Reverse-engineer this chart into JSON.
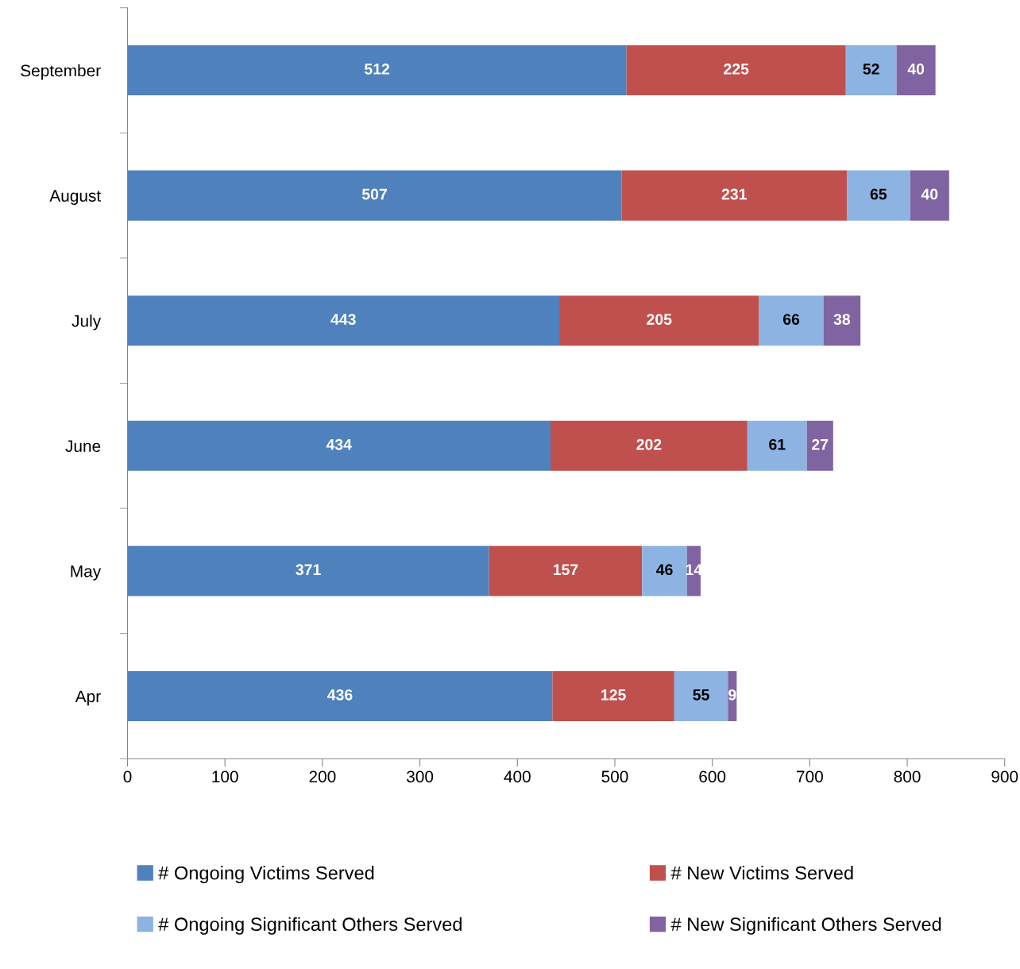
{
  "chart_data": {
    "type": "bar",
    "orientation": "horizontal",
    "stacked": true,
    "data_labels": true,
    "categories": [
      "September",
      "August",
      "July",
      "June",
      "May",
      "Apr"
    ],
    "series": [
      {
        "name": "# Ongoing Victims Served",
        "color": "#4f81bd",
        "values": [
          512,
          507,
          443,
          434,
          371,
          436
        ]
      },
      {
        "name": "# New Victims Served",
        "color": "#c0504d",
        "values": [
          225,
          231,
          205,
          202,
          157,
          125
        ]
      },
      {
        "name": "# Ongoing Significant Others Served",
        "color": "#8db3e2",
        "values": [
          52,
          65,
          66,
          61,
          46,
          55
        ]
      },
      {
        "name": "# New Significant Others Served",
        "color": "#8064a2",
        "values": [
          40,
          40,
          38,
          27,
          14,
          9
        ]
      }
    ],
    "xlim": [
      0,
      900
    ],
    "xticks": [
      0,
      100,
      200,
      300,
      400,
      500,
      600,
      700,
      800,
      900
    ],
    "grid": false,
    "legend": "bottom"
  }
}
